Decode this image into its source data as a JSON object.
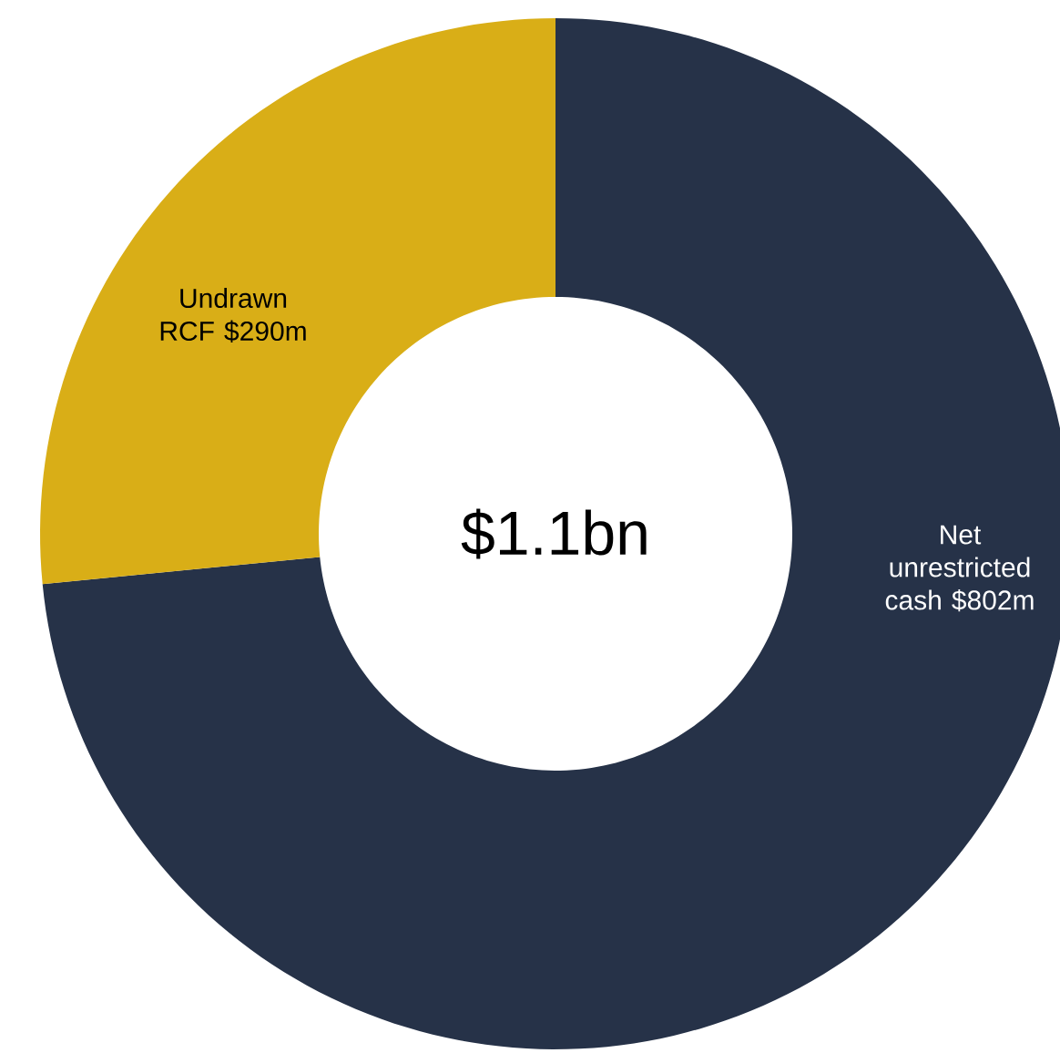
{
  "chart_data": {
    "type": "donut",
    "categories": [
      "Net unrestricted cash",
      "Undrawn RCF"
    ],
    "values": [
      802,
      290
    ],
    "value_labels": [
      "$802m",
      "$290m"
    ],
    "colors": [
      "#263248",
      "#d9ae17"
    ],
    "annotations": [
      "$1.1bn"
    ]
  }
}
